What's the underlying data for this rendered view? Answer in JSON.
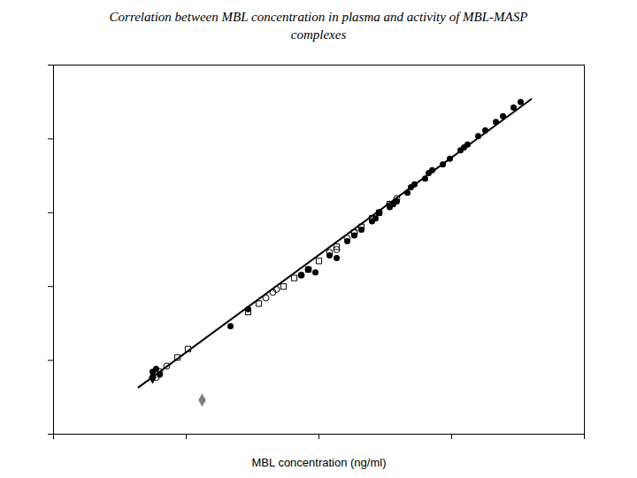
{
  "chart_data": {
    "type": "scatter",
    "title": "Correlation between MBL concentration in plasma and activity of MBL-MASP\ncomplexes",
    "xlabel": "MBL concentration (ng/ml)",
    "xlim": [
      0.0,
      1.5
    ],
    "ylim": [
      0.0,
      1.3
    ],
    "xticks": [
      0.0,
      0.375,
      0.75,
      1.125,
      1.5
    ],
    "yticks": [
      0.0,
      0.26,
      0.52,
      0.78,
      1.04,
      1.3
    ],
    "tick_labels": false,
    "grid": false,
    "series": [
      {
        "type": "scatter",
        "marker": "circle",
        "color": "black",
        "x": [
          0.28,
          0.29,
          0.3,
          0.5,
          0.55,
          0.7,
          0.72,
          0.74,
          0.78,
          0.8,
          0.83,
          0.85,
          0.87,
          0.9,
          0.91,
          0.92,
          0.95,
          0.96,
          0.97,
          1.0,
          1.01,
          1.02,
          1.05,
          1.06,
          1.07,
          1.1,
          1.12,
          1.15,
          1.16,
          1.17,
          1.2,
          1.22,
          1.25,
          1.27,
          1.3,
          1.32
        ],
        "values": [
          0.22,
          0.23,
          0.21,
          0.38,
          0.44,
          0.56,
          0.58,
          0.57,
          0.63,
          0.62,
          0.68,
          0.7,
          0.72,
          0.75,
          0.76,
          0.78,
          0.8,
          0.81,
          0.82,
          0.85,
          0.87,
          0.88,
          0.9,
          0.92,
          0.93,
          0.95,
          0.97,
          1.0,
          1.01,
          1.02,
          1.05,
          1.07,
          1.1,
          1.12,
          1.15,
          1.17
        ]
      },
      {
        "type": "scatter",
        "marker": "circle_open",
        "color": "black",
        "x": [
          0.29,
          0.3,
          0.32,
          0.6,
          0.62,
          0.63,
          0.7,
          0.72,
          0.78,
          0.8,
          0.83,
          0.85,
          0.9,
          0.92,
          0.95,
          0.97
        ],
        "values": [
          0.2,
          0.22,
          0.24,
          0.48,
          0.5,
          0.51,
          0.56,
          0.58,
          0.64,
          0.65,
          0.69,
          0.71,
          0.76,
          0.78,
          0.81,
          0.83
        ]
      },
      {
        "type": "scatter",
        "marker": "square_open",
        "color": "black",
        "x": [
          0.35,
          0.38,
          0.55,
          0.58,
          0.65,
          0.68,
          0.72,
          0.75,
          0.8,
          0.85,
          0.87,
          0.9,
          0.92,
          0.95
        ],
        "values": [
          0.27,
          0.3,
          0.43,
          0.46,
          0.52,
          0.55,
          0.58,
          0.61,
          0.66,
          0.71,
          0.73,
          0.76,
          0.78,
          0.81
        ]
      },
      {
        "type": "scatter",
        "marker": "diamond",
        "color": "black",
        "x": [
          0.28
        ],
        "values": [
          0.2
        ]
      },
      {
        "type": "scatter",
        "marker": "diamond",
        "color": "gray",
        "x": [
          0.42
        ],
        "values": [
          0.12
        ]
      },
      {
        "type": "line",
        "line_style": "solid",
        "color": "black",
        "x": [
          0.24,
          1.35
        ],
        "values": [
          0.165,
          1.18
        ]
      }
    ]
  }
}
